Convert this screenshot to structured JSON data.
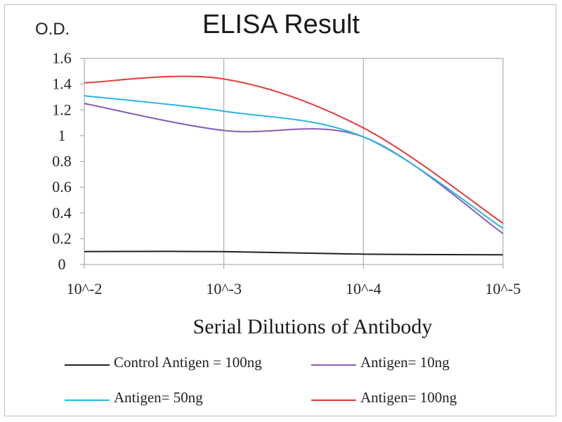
{
  "chart_data": {
    "type": "line",
    "title": "ELISA Result",
    "ylabel": "O.D.",
    "xlabel": "Serial Dilutions  of Antibody",
    "categories": [
      "10^-2",
      "10^-3",
      "10^-4",
      "10^-5"
    ],
    "x": [
      0.01,
      0.001,
      0.0001,
      1e-05
    ],
    "ylim": [
      0,
      1.6
    ],
    "yticks": [
      "0",
      "0.2",
      "0.4",
      "0.6",
      "0.8",
      "1",
      "1.2",
      "1.4",
      "1.6"
    ],
    "grid": "vertical",
    "legend": "bottom",
    "series": [
      {
        "name": "Control Antigen = 100ng",
        "color": "#222222",
        "values": [
          0.1,
          0.1,
          0.08,
          0.075
        ]
      },
      {
        "name": "Antigen= 10ng",
        "color": "#8a5bb8",
        "values": [
          1.25,
          1.04,
          0.99,
          0.24
        ]
      },
      {
        "name": "Antigen= 50ng",
        "color": "#29b6e8",
        "values": [
          1.31,
          1.19,
          0.99,
          0.28
        ]
      },
      {
        "name": "Antigen= 100ng",
        "color": "#e53935",
        "values": [
          1.41,
          1.44,
          1.06,
          0.32
        ]
      }
    ]
  }
}
